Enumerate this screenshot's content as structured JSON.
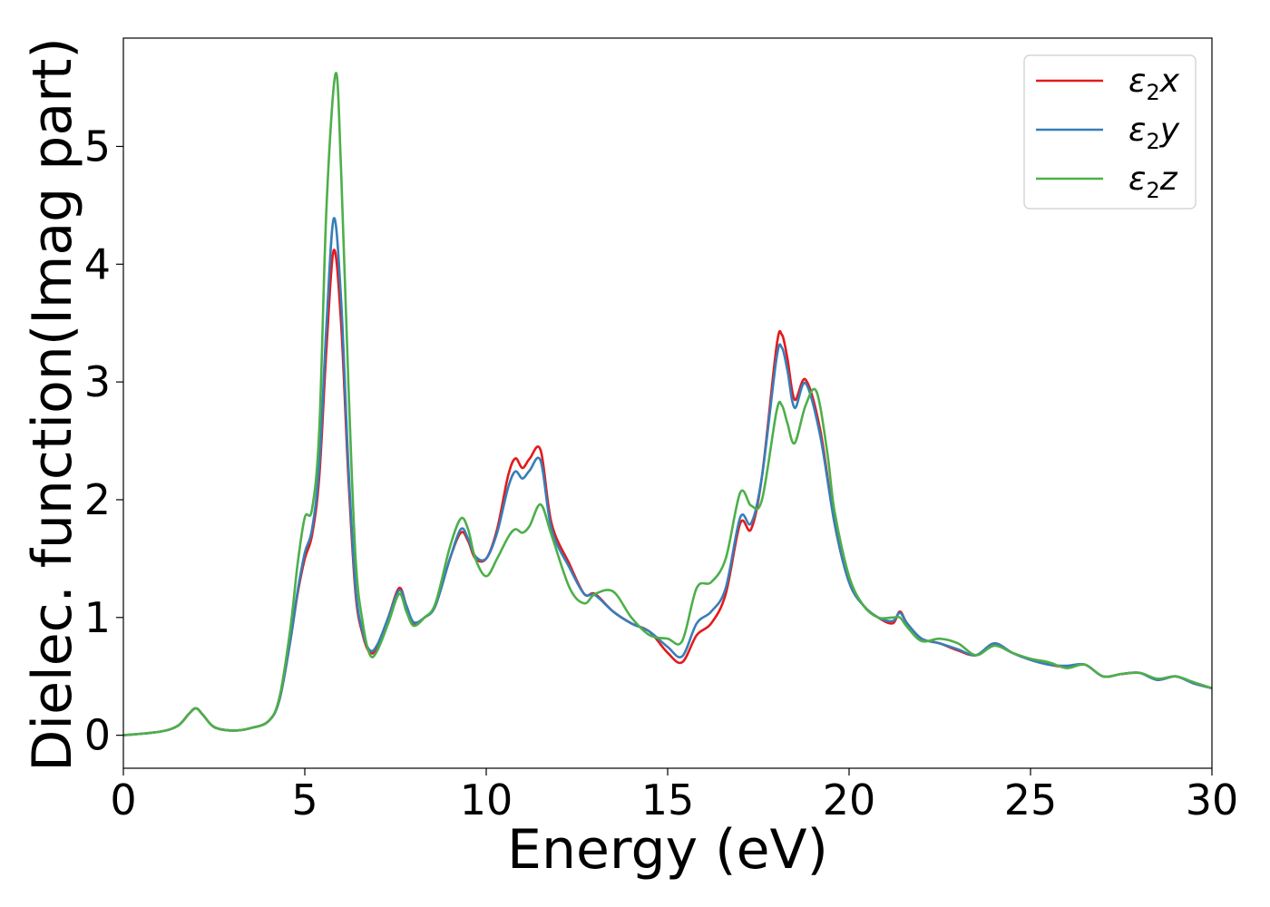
{
  "chart_data": {
    "type": "line",
    "title": "",
    "xlabel": "Energy (eV)",
    "ylabel": "Dielec. function(Imag part)",
    "xlim": [
      0,
      30
    ],
    "ylim": [
      -0.28,
      5.92
    ],
    "xticks": [
      0,
      5,
      10,
      15,
      20,
      25,
      30
    ],
    "yticks": [
      0,
      1,
      2,
      3,
      4,
      5
    ],
    "grid": false,
    "legend_position": "top-right",
    "legend": [
      {
        "base": "ε",
        "sub": "2",
        "suffix": "x"
      },
      {
        "base": "ε",
        "sub": "2",
        "suffix": "y"
      },
      {
        "base": "ε",
        "sub": "2",
        "suffix": "z"
      }
    ],
    "colors": [
      "#e41a1c",
      "#377eb8",
      "#4daf4a"
    ],
    "series": [
      {
        "x": [
          0,
          1.0,
          1.5,
          1.8,
          2.0,
          2.2,
          2.5,
          3.0,
          3.5,
          4.0,
          4.3,
          4.6,
          4.8,
          5.0,
          5.2,
          5.4,
          5.6,
          5.8,
          6.0,
          6.2,
          6.4,
          6.6,
          6.8,
          7.0,
          7.3,
          7.6,
          7.8,
          8.0,
          8.3,
          8.6,
          9.0,
          9.3,
          9.5,
          9.7,
          10.0,
          10.3,
          10.6,
          10.8,
          11.0,
          11.2,
          11.5,
          11.8,
          12.3,
          12.7,
          13.0,
          13.5,
          14.0,
          14.5,
          15.0,
          15.4,
          15.8,
          16.2,
          16.6,
          17.0,
          17.3,
          17.6,
          18.0,
          18.15,
          18.3,
          18.5,
          18.8,
          19.2,
          19.6,
          20.0,
          20.4,
          20.8,
          21.2,
          21.4,
          21.6,
          22.0,
          22.5,
          23.0,
          23.5,
          24.0,
          24.5,
          25.0,
          25.5,
          26.0,
          26.5,
          27.0,
          27.5,
          28.0,
          28.5,
          29.0,
          29.5,
          30.0
        ],
        "y": [
          0,
          0.03,
          0.08,
          0.18,
          0.23,
          0.17,
          0.07,
          0.04,
          0.06,
          0.12,
          0.3,
          0.8,
          1.2,
          1.5,
          1.7,
          2.2,
          3.3,
          4.12,
          3.5,
          2.2,
          1.2,
          0.85,
          0.7,
          0.75,
          1.0,
          1.25,
          1.1,
          0.95,
          1.0,
          1.1,
          1.5,
          1.72,
          1.65,
          1.5,
          1.5,
          1.75,
          2.2,
          2.35,
          2.27,
          2.35,
          2.42,
          1.8,
          1.45,
          1.2,
          1.2,
          1.05,
          0.95,
          0.88,
          0.7,
          0.62,
          0.85,
          0.95,
          1.2,
          1.8,
          1.75,
          2.2,
          3.3,
          3.4,
          3.2,
          2.85,
          3.02,
          2.6,
          1.8,
          1.3,
          1.1,
          1.0,
          0.95,
          1.05,
          0.95,
          0.82,
          0.78,
          0.72,
          0.68,
          0.78,
          0.7,
          0.64,
          0.6,
          0.58,
          0.6,
          0.5,
          0.52,
          0.53,
          0.47,
          0.5,
          0.44,
          0.4
        ]
      },
      {
        "x": [
          0,
          1.0,
          1.5,
          1.8,
          2.0,
          2.2,
          2.5,
          3.0,
          3.5,
          4.0,
          4.3,
          4.6,
          4.8,
          5.0,
          5.2,
          5.4,
          5.6,
          5.8,
          6.0,
          6.2,
          6.4,
          6.6,
          6.8,
          7.0,
          7.3,
          7.6,
          7.8,
          8.0,
          8.3,
          8.6,
          9.0,
          9.3,
          9.5,
          9.7,
          10.0,
          10.3,
          10.6,
          10.8,
          11.0,
          11.2,
          11.5,
          11.8,
          12.3,
          12.7,
          13.0,
          13.5,
          14.0,
          14.5,
          15.0,
          15.4,
          15.8,
          16.2,
          16.6,
          17.0,
          17.3,
          17.6,
          18.0,
          18.15,
          18.3,
          18.5,
          18.8,
          19.2,
          19.6,
          20.0,
          20.4,
          20.8,
          21.2,
          21.4,
          21.6,
          22.0,
          22.5,
          23.0,
          23.5,
          24.0,
          24.5,
          25.0,
          25.5,
          26.0,
          26.5,
          27.0,
          27.5,
          28.0,
          28.5,
          29.0,
          29.5,
          30.0
        ],
        "y": [
          0,
          0.03,
          0.08,
          0.18,
          0.23,
          0.17,
          0.07,
          0.04,
          0.06,
          0.12,
          0.3,
          0.8,
          1.22,
          1.55,
          1.75,
          2.3,
          3.5,
          4.39,
          3.7,
          2.3,
          1.25,
          0.87,
          0.72,
          0.77,
          1.0,
          1.23,
          1.1,
          0.96,
          1.0,
          1.1,
          1.5,
          1.75,
          1.67,
          1.52,
          1.5,
          1.72,
          2.1,
          2.24,
          2.18,
          2.25,
          2.33,
          1.75,
          1.42,
          1.2,
          1.19,
          1.05,
          0.95,
          0.88,
          0.75,
          0.67,
          0.95,
          1.05,
          1.25,
          1.85,
          1.8,
          2.2,
          3.2,
          3.29,
          3.1,
          2.78,
          2.99,
          2.55,
          1.8,
          1.3,
          1.1,
          1.0,
          0.97,
          1.04,
          0.95,
          0.82,
          0.78,
          0.73,
          0.68,
          0.78,
          0.7,
          0.64,
          0.6,
          0.59,
          0.6,
          0.5,
          0.52,
          0.53,
          0.47,
          0.5,
          0.44,
          0.4
        ]
      },
      {
        "x": [
          0,
          1.0,
          1.5,
          1.8,
          2.0,
          2.2,
          2.5,
          3.0,
          3.5,
          4.0,
          4.3,
          4.6,
          4.8,
          5.0,
          5.2,
          5.4,
          5.6,
          5.85,
          6.0,
          6.2,
          6.4,
          6.6,
          6.8,
          7.0,
          7.3,
          7.6,
          7.8,
          8.0,
          8.3,
          8.6,
          9.0,
          9.3,
          9.5,
          9.7,
          10.0,
          10.3,
          10.6,
          10.8,
          11.0,
          11.2,
          11.5,
          11.8,
          12.3,
          12.7,
          13.0,
          13.5,
          14.0,
          14.5,
          15.0,
          15.4,
          15.8,
          16.2,
          16.6,
          17.0,
          17.3,
          17.6,
          18.0,
          18.15,
          18.3,
          18.5,
          18.8,
          19.1,
          19.4,
          19.6,
          20.0,
          20.4,
          20.8,
          21.2,
          21.4,
          21.6,
          22.0,
          22.5,
          23.0,
          23.5,
          24.0,
          24.5,
          25.0,
          25.5,
          26.0,
          26.5,
          27.0,
          27.5,
          28.0,
          28.5,
          29.0,
          29.5,
          30.0
        ],
        "y": [
          0,
          0.03,
          0.08,
          0.18,
          0.23,
          0.17,
          0.07,
          0.04,
          0.06,
          0.12,
          0.32,
          0.9,
          1.45,
          1.85,
          1.92,
          2.6,
          4.5,
          5.62,
          4.8,
          3.0,
          1.5,
          0.95,
          0.68,
          0.72,
          0.95,
          1.2,
          1.05,
          0.93,
          1.0,
          1.12,
          1.6,
          1.84,
          1.75,
          1.5,
          1.35,
          1.5,
          1.68,
          1.75,
          1.72,
          1.78,
          1.96,
          1.7,
          1.25,
          1.12,
          1.2,
          1.22,
          1.0,
          0.85,
          0.82,
          0.8,
          1.25,
          1.3,
          1.5,
          2.06,
          1.95,
          2.0,
          2.75,
          2.8,
          2.65,
          2.48,
          2.8,
          2.92,
          2.4,
          1.9,
          1.35,
          1.1,
          1.0,
          1.0,
          1.0,
          0.92,
          0.8,
          0.82,
          0.78,
          0.68,
          0.76,
          0.7,
          0.65,
          0.62,
          0.57,
          0.6,
          0.5,
          0.52,
          0.53,
          0.48,
          0.5,
          0.45,
          0.4
        ]
      }
    ]
  }
}
